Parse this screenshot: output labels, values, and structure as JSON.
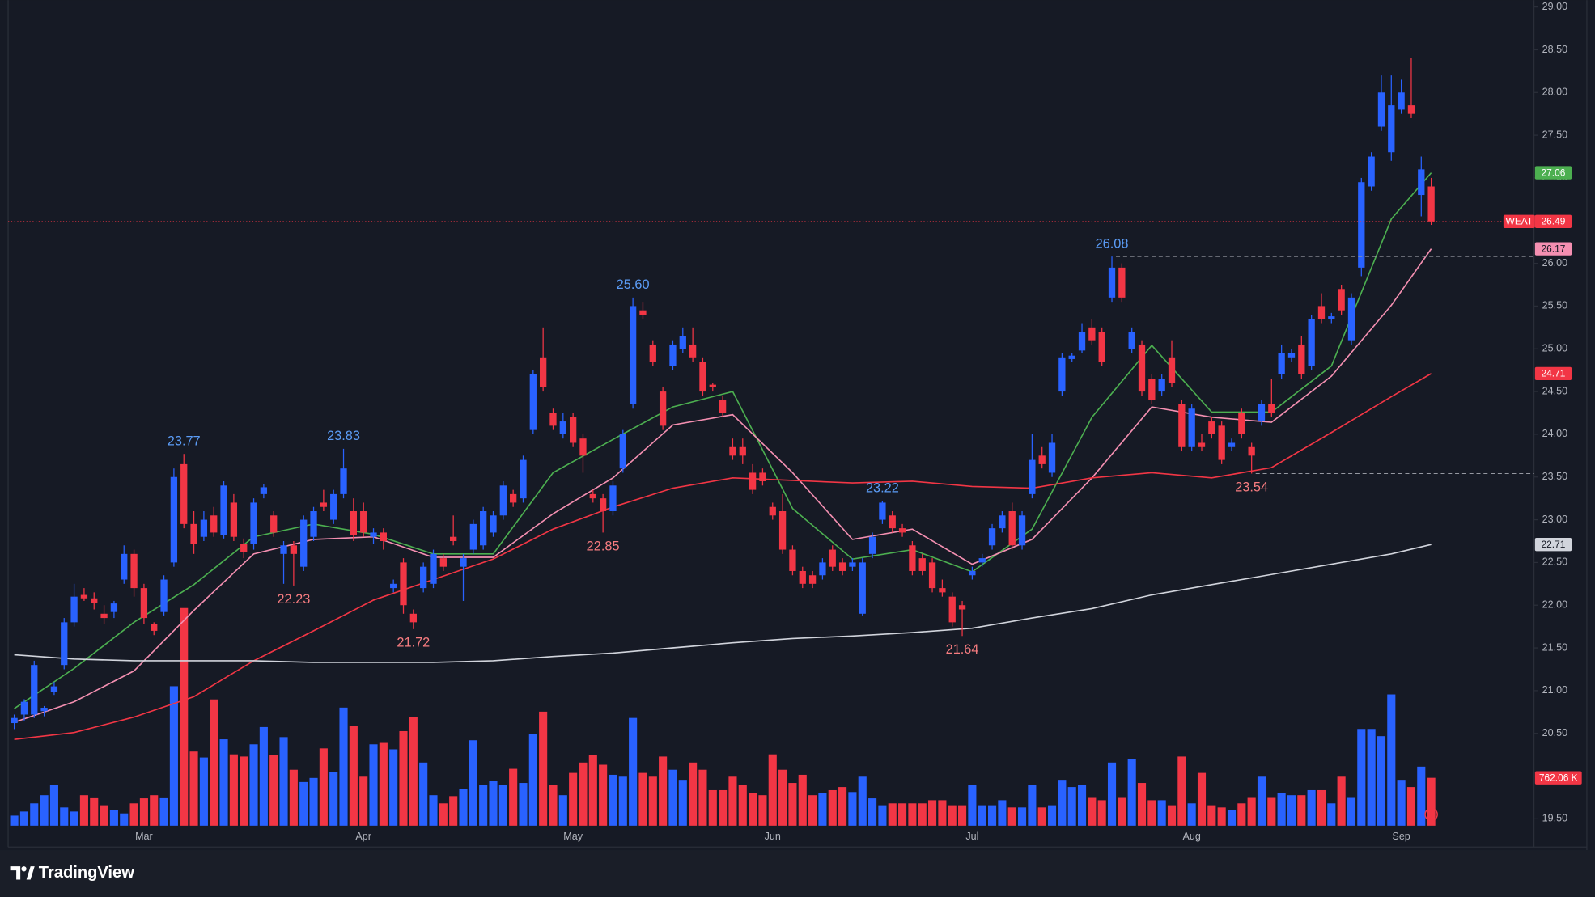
{
  "chart_data": {
    "type": "candlestick",
    "symbol": "WEAT",
    "brand": "TradingView",
    "up_color": "#2962ff",
    "down_color": "#f23645",
    "ylim": [
      19.17,
      29.08
    ],
    "yticks": [
      {
        "value": 19.5,
        "label": "19.50"
      },
      {
        "value": 20,
        "label": "20.00"
      },
      {
        "value": 20.5,
        "label": "20.50"
      },
      {
        "value": 21,
        "label": "21.00"
      },
      {
        "value": 21.5,
        "label": "21.50"
      },
      {
        "value": 22,
        "label": "22.00"
      },
      {
        "value": 22.5,
        "label": "22.50"
      },
      {
        "value": 23,
        "label": "23.00"
      },
      {
        "value": 23.5,
        "label": "23.50"
      },
      {
        "value": 24,
        "label": "24.00"
      },
      {
        "value": 24.5,
        "label": "24.50"
      },
      {
        "value": 25,
        "label": "25.00"
      },
      {
        "value": 25.5,
        "label": "25.50"
      },
      {
        "value": 26,
        "label": "26.00"
      },
      {
        "value": 26.5,
        "label": "26.50"
      },
      {
        "value": 27,
        "label": "27.00"
      },
      {
        "value": 27.5,
        "label": "27.50"
      },
      {
        "value": 28,
        "label": "28.00"
      },
      {
        "value": 28.5,
        "label": "28.50"
      },
      {
        "value": 29,
        "label": "29.00"
      }
    ],
    "grid": false,
    "months": [
      {
        "label": "Mar",
        "x": 13
      },
      {
        "label": "Apr",
        "x": 35
      },
      {
        "label": "May",
        "x": 56
      },
      {
        "label": "Jun",
        "x": 76
      },
      {
        "label": "Jul",
        "x": 96
      },
      {
        "label": "Aug",
        "x": 118
      },
      {
        "label": "Sep",
        "x": 139
      }
    ],
    "ohlc": [
      [
        20.62,
        20.72,
        20.55,
        20.68
      ],
      [
        20.72,
        20.9,
        20.65,
        20.87
      ],
      [
        20.72,
        21.35,
        20.68,
        21.3
      ],
      [
        20.76,
        20.82,
        20.7,
        20.8
      ],
      [
        20.98,
        21.1,
        20.95,
        21.05
      ],
      [
        21.3,
        21.85,
        21.25,
        21.8
      ],
      [
        21.8,
        22.25,
        21.75,
        22.1
      ],
      [
        22.12,
        22.2,
        22.05,
        22.08
      ],
      [
        22.08,
        22.15,
        21.95,
        22.03
      ],
      [
        21.9,
        22.0,
        21.78,
        21.85
      ],
      [
        21.92,
        22.05,
        21.85,
        22.02
      ],
      [
        22.3,
        22.7,
        22.25,
        22.6
      ],
      [
        22.6,
        22.65,
        22.1,
        22.2
      ],
      [
        22.2,
        22.25,
        21.78,
        21.85
      ],
      [
        21.78,
        21.8,
        21.65,
        21.7
      ],
      [
        21.92,
        22.35,
        21.88,
        22.3
      ],
      [
        22.5,
        23.6,
        22.45,
        23.5
      ],
      [
        23.65,
        23.77,
        22.9,
        22.95
      ],
      [
        22.95,
        23.1,
        22.6,
        22.72
      ],
      [
        22.8,
        23.1,
        22.75,
        23.0
      ],
      [
        23.05,
        23.15,
        22.8,
        22.85
      ],
      [
        22.82,
        23.45,
        22.78,
        23.4
      ],
      [
        23.2,
        23.3,
        22.75,
        22.8
      ],
      [
        22.72,
        22.78,
        22.55,
        22.62
      ],
      [
        22.72,
        23.25,
        22.65,
        23.2
      ],
      [
        23.3,
        23.42,
        23.25,
        23.38
      ],
      [
        23.05,
        23.1,
        22.8,
        22.85
      ],
      [
        22.6,
        22.75,
        22.25,
        22.7
      ],
      [
        22.7,
        22.75,
        22.23,
        22.6
      ],
      [
        22.45,
        23.05,
        22.4,
        23.0
      ],
      [
        22.8,
        23.15,
        22.75,
        23.1
      ],
      [
        23.2,
        23.35,
        23.1,
        23.15
      ],
      [
        23.0,
        23.35,
        22.95,
        23.3
      ],
      [
        23.3,
        23.83,
        23.25,
        23.6
      ],
      [
        23.1,
        23.25,
        22.75,
        22.82
      ],
      [
        23.1,
        23.2,
        22.8,
        22.85
      ],
      [
        22.8,
        22.9,
        22.72,
        22.85
      ],
      [
        22.85,
        22.9,
        22.65,
        22.75
      ],
      [
        22.2,
        22.3,
        22.15,
        22.25
      ],
      [
        22.5,
        22.55,
        21.9,
        22.0
      ],
      [
        21.9,
        21.95,
        21.72,
        21.8
      ],
      [
        22.2,
        22.5,
        22.15,
        22.45
      ],
      [
        22.25,
        22.65,
        22.2,
        22.6
      ],
      [
        22.55,
        22.6,
        22.4,
        22.45
      ],
      [
        22.8,
        23.05,
        22.7,
        22.75
      ],
      [
        22.45,
        22.6,
        22.05,
        22.55
      ],
      [
        22.65,
        23.0,
        22.6,
        22.95
      ],
      [
        22.7,
        23.15,
        22.65,
        23.1
      ],
      [
        22.85,
        23.1,
        22.8,
        23.05
      ],
      [
        23.05,
        23.45,
        23.0,
        23.4
      ],
      [
        23.3,
        23.35,
        23.15,
        23.2
      ],
      [
        23.25,
        23.75,
        23.2,
        23.7
      ],
      [
        24.05,
        24.75,
        24.0,
        24.7
      ],
      [
        24.9,
        25.25,
        24.5,
        24.55
      ],
      [
        24.25,
        24.3,
        24.05,
        24.1
      ],
      [
        24.0,
        24.25,
        23.95,
        24.15
      ],
      [
        24.2,
        24.25,
        23.85,
        23.9
      ],
      [
        23.95,
        24.0,
        23.55,
        23.75
      ],
      [
        23.3,
        23.35,
        23.2,
        23.25
      ],
      [
        23.25,
        23.3,
        22.85,
        23.1
      ],
      [
        23.1,
        23.45,
        23.05,
        23.4
      ],
      [
        23.6,
        24.05,
        23.55,
        24.0
      ],
      [
        24.35,
        25.6,
        24.3,
        25.5
      ],
      [
        25.45,
        25.55,
        25.35,
        25.4
      ],
      [
        25.05,
        25.1,
        24.8,
        24.85
      ],
      [
        24.5,
        24.55,
        24.05,
        24.1
      ],
      [
        24.8,
        25.1,
        24.75,
        25.05
      ],
      [
        25.0,
        25.25,
        24.95,
        25.15
      ],
      [
        25.05,
        25.25,
        24.85,
        24.9
      ],
      [
        24.85,
        24.9,
        24.45,
        24.5
      ],
      [
        24.58,
        24.6,
        24.5,
        24.55
      ],
      [
        24.4,
        24.45,
        24.2,
        24.25
      ],
      [
        23.85,
        23.95,
        23.7,
        23.75
      ],
      [
        23.85,
        23.95,
        23.65,
        23.75
      ],
      [
        23.55,
        23.65,
        23.3,
        23.35
      ],
      [
        23.55,
        23.6,
        23.4,
        23.45
      ],
      [
        23.15,
        23.2,
        23.0,
        23.05
      ],
      [
        23.1,
        23.3,
        22.6,
        22.65
      ],
      [
        22.65,
        22.7,
        22.35,
        22.4
      ],
      [
        22.4,
        22.45,
        22.2,
        22.25
      ],
      [
        22.35,
        22.4,
        22.2,
        22.25
      ],
      [
        22.35,
        22.55,
        22.3,
        22.5
      ],
      [
        22.65,
        22.7,
        22.4,
        22.45
      ],
      [
        22.5,
        22.55,
        22.35,
        22.4
      ],
      [
        22.45,
        22.55,
        22.4,
        22.5
      ],
      [
        21.9,
        22.55,
        21.88,
        22.5
      ],
      [
        22.6,
        22.85,
        22.55,
        22.8
      ],
      [
        23.0,
        23.22,
        22.95,
        23.2
      ],
      [
        23.05,
        23.1,
        22.85,
        22.9
      ],
      [
        22.9,
        22.95,
        22.8,
        22.85
      ],
      [
        22.7,
        22.75,
        22.35,
        22.4
      ],
      [
        22.55,
        22.6,
        22.35,
        22.4
      ],
      [
        22.5,
        22.55,
        22.15,
        22.2
      ],
      [
        22.2,
        22.3,
        22.1,
        22.15
      ],
      [
        22.1,
        22.15,
        21.75,
        21.8
      ],
      [
        22.0,
        22.05,
        21.64,
        21.95
      ],
      [
        22.35,
        22.45,
        22.3,
        22.4
      ],
      [
        22.5,
        22.6,
        22.45,
        22.55
      ],
      [
        22.7,
        22.95,
        22.65,
        22.9
      ],
      [
        22.9,
        23.1,
        22.85,
        23.05
      ],
      [
        23.1,
        23.2,
        22.65,
        22.7
      ],
      [
        22.7,
        23.1,
        22.65,
        23.05
      ],
      [
        23.3,
        24.0,
        23.25,
        23.7
      ],
      [
        23.75,
        23.85,
        23.6,
        23.65
      ],
      [
        23.55,
        24.0,
        23.5,
        23.9
      ],
      [
        24.5,
        24.95,
        24.45,
        24.9
      ],
      [
        24.88,
        24.95,
        24.85,
        24.92
      ],
      [
        24.98,
        25.3,
        24.95,
        25.2
      ],
      [
        25.25,
        25.35,
        25.05,
        25.1
      ],
      [
        25.2,
        25.25,
        24.8,
        24.85
      ],
      [
        25.6,
        26.08,
        25.55,
        25.95
      ],
      [
        25.95,
        26.0,
        25.55,
        25.6
      ],
      [
        25.0,
        25.25,
        24.95,
        25.2
      ],
      [
        25.05,
        25.1,
        24.45,
        24.5
      ],
      [
        24.65,
        24.7,
        24.35,
        24.4
      ],
      [
        24.5,
        24.7,
        24.45,
        24.65
      ],
      [
        24.9,
        25.1,
        24.55,
        24.6
      ],
      [
        24.35,
        24.4,
        23.8,
        23.85
      ],
      [
        23.85,
        24.35,
        23.8,
        24.3
      ],
      [
        23.9,
        24.0,
        23.8,
        23.85
      ],
      [
        24.15,
        24.2,
        23.95,
        24.0
      ],
      [
        24.1,
        24.15,
        23.65,
        23.7
      ],
      [
        23.85,
        23.95,
        23.8,
        23.9
      ],
      [
        24.25,
        24.3,
        23.95,
        24.0
      ],
      [
        23.85,
        23.9,
        23.54,
        23.75
      ],
      [
        24.15,
        24.4,
        24.1,
        24.35
      ],
      [
        24.35,
        24.65,
        24.2,
        24.25
      ],
      [
        24.7,
        25.05,
        24.65,
        24.95
      ],
      [
        24.9,
        25.0,
        24.85,
        24.95
      ],
      [
        25.05,
        25.15,
        24.65,
        24.7
      ],
      [
        24.8,
        25.4,
        24.75,
        25.35
      ],
      [
        25.5,
        25.65,
        25.3,
        25.35
      ],
      [
        25.35,
        25.42,
        25.3,
        25.38
      ],
      [
        25.7,
        25.75,
        25.4,
        25.45
      ],
      [
        25.1,
        25.65,
        25.05,
        25.6
      ],
      [
        25.95,
        27.0,
        25.85,
        26.95
      ],
      [
        26.9,
        27.3,
        26.85,
        27.25
      ],
      [
        27.6,
        28.2,
        27.55,
        28.0
      ],
      [
        27.3,
        28.2,
        27.2,
        27.85
      ],
      [
        27.8,
        28.15,
        27.75,
        28.0
      ],
      [
        27.85,
        28.4,
        27.7,
        27.75
      ],
      [
        26.8,
        27.25,
        26.55,
        27.1
      ],
      [
        26.9,
        27.0,
        26.45,
        26.49
      ]
    ],
    "volume": {
      "vlim": [
        0,
        2800
      ],
      "last_label": "762.06 K",
      "values": [
        160,
        225,
        355,
        485,
        650,
        290,
        225,
        485,
        450,
        325,
        245,
        195,
        355,
        435,
        485,
        450,
        2220,
        3465,
        1180,
        1085,
        2010,
        1375,
        1135,
        1100,
        1295,
        1570,
        1120,
        1410,
        890,
        695,
        760,
        1230,
        860,
        1880,
        1590,
        780,
        1295,
        1330,
        1215,
        1505,
        1735,
        1005,
        485,
        355,
        470,
        585,
        1360,
        650,
        715,
        650,
        905,
        680,
        1460,
        1815,
        650,
        485,
        840,
        1005,
        1120,
        970,
        810,
        780,
        1715,
        840,
        780,
        1100,
        890,
        730,
        1005,
        890,
        565,
        565,
        780,
        650,
        520,
        485,
        1135,
        890,
        680,
        810,
        485,
        520,
        565,
        615,
        535,
        780,
        435,
        325,
        355,
        355,
        355,
        355,
        405,
        405,
        325,
        325,
        650,
        325,
        325,
        405,
        290,
        290,
        650,
        290,
        325,
        730,
        615,
        650,
        455,
        405,
        1005,
        455,
        1055,
        680,
        405,
        405,
        325,
        1100,
        355,
        840,
        325,
        290,
        245,
        355,
        455,
        780,
        455,
        520,
        485,
        485,
        565,
        565,
        355,
        780,
        455,
        1540,
        1540,
        1425,
        2090,
        730,
        615,
        940,
        762.06
      ]
    },
    "ma_x": [
      0,
      6,
      12,
      18,
      24,
      30,
      36,
      42,
      48,
      54,
      60,
      66,
      72,
      78,
      84,
      90,
      96,
      102,
      108,
      114,
      120,
      126,
      132,
      138,
      142
    ],
    "moving_averages": [
      {
        "color": "#4caf50",
        "tag_text": "#ffffff",
        "values": [
          20.79,
          21.26,
          21.8,
          22.24,
          22.8,
          22.95,
          22.83,
          22.6,
          22.6,
          23.55,
          23.94,
          24.32,
          24.5,
          23.13,
          22.54,
          22.65,
          22.39,
          22.89,
          24.2,
          25.04,
          24.26,
          24.26,
          24.8,
          26.52,
          27.06
        ]
      },
      {
        "color": "#f48fb1",
        "tag_text": "#131722",
        "values": [
          20.63,
          20.87,
          21.23,
          21.94,
          22.6,
          22.77,
          22.8,
          22.56,
          22.56,
          23.07,
          23.49,
          24.11,
          24.23,
          23.55,
          22.77,
          22.89,
          22.48,
          22.77,
          23.49,
          24.32,
          24.2,
          24.14,
          24.68,
          25.51,
          26.17
        ]
      },
      {
        "color": "#f23645",
        "tag_text": "#ffffff",
        "values": [
          20.43,
          20.51,
          20.69,
          20.93,
          21.35,
          21.7,
          22.06,
          22.3,
          22.54,
          22.89,
          23.15,
          23.37,
          23.49,
          23.46,
          23.43,
          23.45,
          23.39,
          23.37,
          23.49,
          23.55,
          23.49,
          23.61,
          24.02,
          24.44,
          24.71
        ]
      },
      {
        "color": "#d1d4dc",
        "tag_text": "#131722",
        "values": [
          21.42,
          21.37,
          21.35,
          21.35,
          21.35,
          21.33,
          21.33,
          21.33,
          21.35,
          21.4,
          21.44,
          21.5,
          21.56,
          21.61,
          21.64,
          21.68,
          21.73,
          21.85,
          21.96,
          22.12,
          22.24,
          22.36,
          22.48,
          22.6,
          22.71
        ]
      }
    ],
    "annotations": [
      {
        "value": 23.77,
        "label": "23.77",
        "x": 17,
        "kind": "high",
        "dashed": false
      },
      {
        "value": 23.83,
        "label": "23.83",
        "x": 33,
        "kind": "high",
        "dashed": false
      },
      {
        "value": 25.6,
        "label": "25.60",
        "x": 62,
        "kind": "high",
        "dashed": false
      },
      {
        "value": 23.22,
        "label": "23.22",
        "x": 87,
        "kind": "high",
        "dashed": false
      },
      {
        "value": 26.08,
        "label": "26.08",
        "x": 110,
        "kind": "high",
        "dashed": true
      },
      {
        "value": 22.23,
        "label": "22.23",
        "x": 28,
        "kind": "low",
        "dashed": false
      },
      {
        "value": 21.72,
        "label": "21.72",
        "x": 40,
        "kind": "low",
        "dashed": false
      },
      {
        "value": 22.85,
        "label": "22.85",
        "x": 59,
        "kind": "low",
        "dashed": false
      },
      {
        "value": 21.64,
        "label": "21.64",
        "x": 95,
        "kind": "low",
        "dashed": false
      },
      {
        "value": 23.54,
        "label": "23.54",
        "x": 124,
        "kind": "low",
        "dashed": true
      }
    ]
  }
}
